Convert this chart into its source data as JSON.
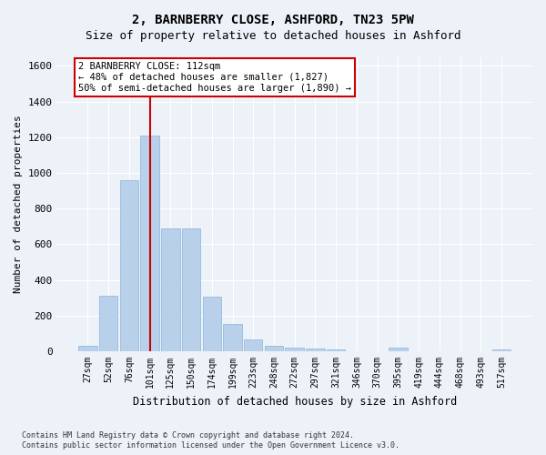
{
  "title_line1": "2, BARNBERRY CLOSE, ASHFORD, TN23 5PW",
  "title_line2": "Size of property relative to detached houses in Ashford",
  "xlabel": "Distribution of detached houses by size in Ashford",
  "ylabel": "Number of detached properties",
  "bar_labels": [
    "27sqm",
    "52sqm",
    "76sqm",
    "101sqm",
    "125sqm",
    "150sqm",
    "174sqm",
    "199sqm",
    "223sqm",
    "248sqm",
    "272sqm",
    "297sqm",
    "321sqm",
    "346sqm",
    "370sqm",
    "395sqm",
    "419sqm",
    "444sqm",
    "468sqm",
    "493sqm",
    "517sqm"
  ],
  "bar_values": [
    30,
    310,
    960,
    1210,
    690,
    690,
    305,
    155,
    65,
    30,
    20,
    15,
    10,
    0,
    0,
    20,
    0,
    0,
    0,
    0,
    10
  ],
  "bar_color": "#b8d0ea",
  "bar_edge_color": "#8ab4d8",
  "vline_index": 3,
  "vline_color": "#cc0000",
  "annotation_text": "2 BARNBERRY CLOSE: 112sqm\n← 48% of detached houses are smaller (1,827)\n50% of semi-detached houses are larger (1,890) →",
  "annotation_box_facecolor": "#ffffff",
  "annotation_box_edgecolor": "#cc0000",
  "ylim": [
    0,
    1650
  ],
  "yticks": [
    0,
    200,
    400,
    600,
    800,
    1000,
    1200,
    1400,
    1600
  ],
  "background_color": "#edf2f9",
  "grid_color": "#ffffff",
  "title_fontsize": 10,
  "subtitle_fontsize": 9,
  "footnote_line1": "Contains HM Land Registry data © Crown copyright and database right 2024.",
  "footnote_line2": "Contains public sector information licensed under the Open Government Licence v3.0."
}
